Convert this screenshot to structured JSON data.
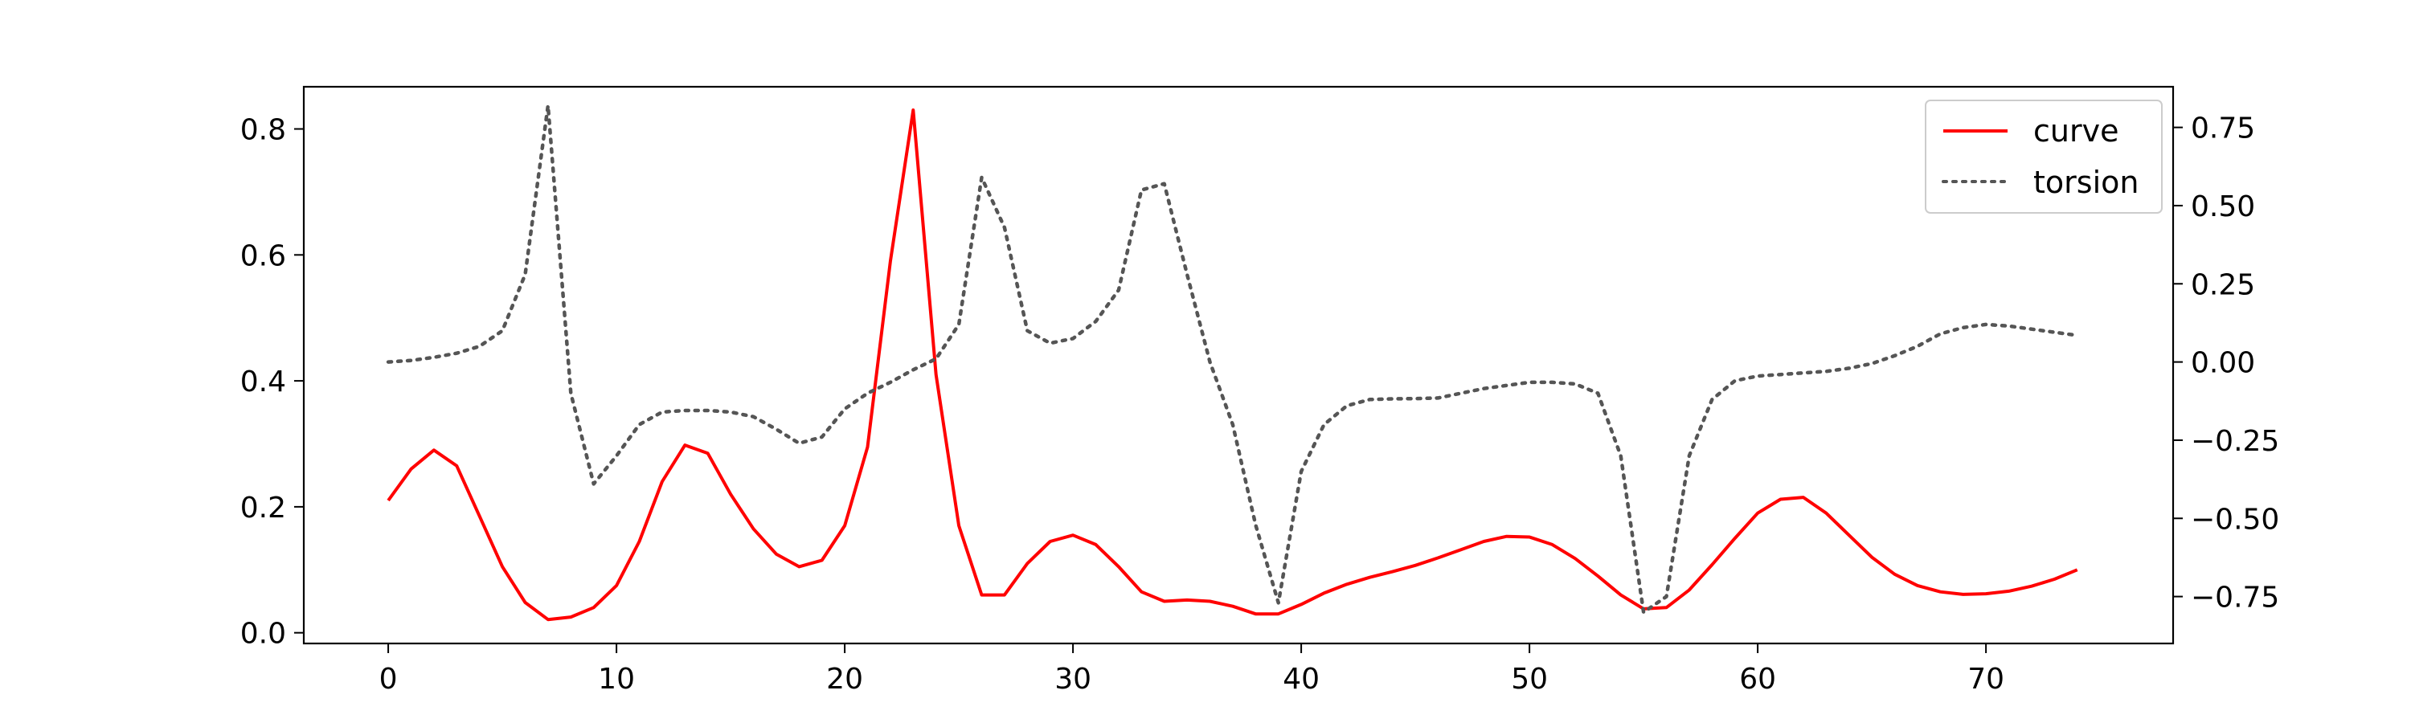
{
  "chart_data": {
    "type": "line",
    "title": "",
    "xlabel": "",
    "ylabel": "",
    "y2label": "",
    "xlim": [
      -3.7,
      78.2
    ],
    "ylim": [
      -0.017,
      0.867
    ],
    "y2lim": [
      -0.9,
      0.88
    ],
    "x_ticks": [
      "0",
      "10",
      "20",
      "30",
      "40",
      "50",
      "60",
      "70"
    ],
    "y_ticks": [
      "0.0",
      "0.2",
      "0.4",
      "0.6",
      "0.8"
    ],
    "y2_ticks": [
      "−0.75",
      "−0.50",
      "−0.25",
      "0.00",
      "0.25",
      "0.50",
      "0.75"
    ],
    "grid": false,
    "legend_position": "top-right",
    "series": [
      {
        "name": "curve",
        "axis": "left",
        "color": "#ff0000",
        "style": "solid",
        "x": [
          0,
          1,
          2,
          3,
          4,
          5,
          6,
          7,
          8,
          9,
          10,
          11,
          12,
          13,
          14,
          15,
          16,
          17,
          18,
          19,
          20,
          21,
          22,
          23,
          24,
          25,
          26,
          27,
          28,
          29,
          30,
          31,
          32,
          33,
          34,
          35,
          36,
          37,
          38,
          39,
          40,
          41,
          42,
          43,
          44,
          45,
          46,
          47,
          48,
          49,
          50,
          51,
          52,
          53,
          54,
          55,
          56,
          57,
          58,
          59,
          60,
          61,
          62,
          63,
          64,
          65,
          66,
          67,
          68,
          69,
          70,
          71,
          72,
          73,
          74
        ],
        "values": [
          0.21,
          0.26,
          0.29,
          0.265,
          0.185,
          0.105,
          0.048,
          0.021,
          0.025,
          0.04,
          0.075,
          0.145,
          0.24,
          0.298,
          0.285,
          0.22,
          0.165,
          0.125,
          0.105,
          0.115,
          0.17,
          0.295,
          0.59,
          0.83,
          0.41,
          0.17,
          0.06,
          0.06,
          0.11,
          0.145,
          0.155,
          0.14,
          0.105,
          0.065,
          0.05,
          0.052,
          0.05,
          0.042,
          0.03,
          0.03,
          0.045,
          0.063,
          0.077,
          0.088,
          0.097,
          0.107,
          0.119,
          0.132,
          0.145,
          0.153,
          0.152,
          0.14,
          0.118,
          0.09,
          0.06,
          0.038,
          0.04,
          0.068,
          0.108,
          0.15,
          0.19,
          0.212,
          0.215,
          0.19,
          0.155,
          0.12,
          0.093,
          0.075,
          0.065,
          0.061,
          0.062,
          0.066,
          0.074,
          0.085,
          0.1
        ]
      },
      {
        "name": "torsion",
        "axis": "right",
        "color": "#555555",
        "style": "dotted",
        "x": [
          0,
          1,
          2,
          3,
          4,
          5,
          6,
          7,
          8,
          9,
          10,
          11,
          12,
          13,
          14,
          15,
          16,
          17,
          18,
          19,
          20,
          21,
          22,
          23,
          24,
          25,
          26,
          27,
          28,
          29,
          30,
          31,
          32,
          33,
          34,
          35,
          36,
          37,
          38,
          39,
          40,
          41,
          42,
          43,
          44,
          45,
          46,
          47,
          48,
          49,
          50,
          51,
          52,
          53,
          54,
          55,
          56,
          57,
          58,
          59,
          60,
          61,
          62,
          63,
          64,
          65,
          66,
          67,
          68,
          69,
          70,
          71,
          72,
          73,
          74
        ],
        "values": [
          0.0,
          0.005,
          0.015,
          0.028,
          0.05,
          0.1,
          0.28,
          0.82,
          -0.1,
          -0.39,
          -0.3,
          -0.2,
          -0.16,
          -0.155,
          -0.155,
          -0.16,
          -0.175,
          -0.215,
          -0.26,
          -0.24,
          -0.15,
          -0.1,
          -0.065,
          -0.025,
          0.01,
          0.12,
          0.59,
          0.43,
          0.1,
          0.06,
          0.075,
          0.13,
          0.23,
          0.55,
          0.57,
          0.28,
          0.0,
          -0.2,
          -0.52,
          -0.77,
          -0.35,
          -0.2,
          -0.14,
          -0.12,
          -0.118,
          -0.117,
          -0.115,
          -0.1,
          -0.085,
          -0.075,
          -0.065,
          -0.065,
          -0.07,
          -0.1,
          -0.3,
          -0.8,
          -0.75,
          -0.3,
          -0.12,
          -0.06,
          -0.045,
          -0.04,
          -0.035,
          -0.03,
          -0.02,
          -0.005,
          0.02,
          0.05,
          0.09,
          0.11,
          0.12,
          0.115,
          0.105,
          0.095,
          0.085
        ]
      }
    ]
  }
}
